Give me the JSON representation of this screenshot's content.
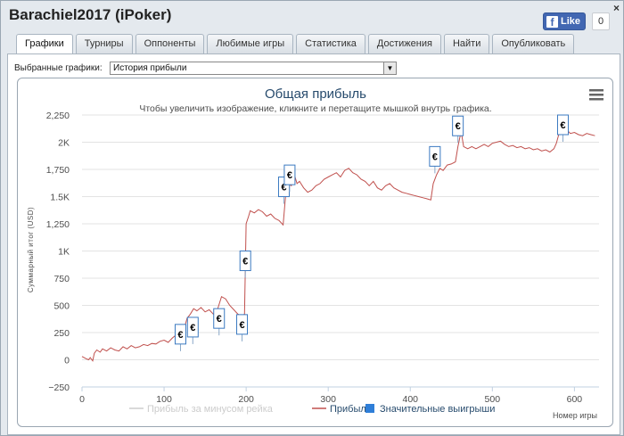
{
  "window": {
    "title": "Barachiel2017 (iPoker)",
    "close_glyph": "×"
  },
  "facebook": {
    "like_label": "Like",
    "count": "0",
    "icon": "facebook-icon"
  },
  "tabs": [
    {
      "label": "Графики",
      "active": true
    },
    {
      "label": "Турниры"
    },
    {
      "label": "Оппоненты"
    },
    {
      "label": "Любимые игры"
    },
    {
      "label": "Статистика"
    },
    {
      "label": "Достижения"
    },
    {
      "label": "Найти"
    },
    {
      "label": "Опубликовать"
    }
  ],
  "graph_select": {
    "label": "Выбранные графики:",
    "value": "История прибыли"
  },
  "chart_menu_icon": "hamburger-menu-icon",
  "chart_data": {
    "type": "line",
    "title": "Общая прибыль",
    "subtitle": "Чтобы увеличить изображение, кликните и перетащите мышкой внутрь графика.",
    "ylabel": "Суммарный итог (USD)",
    "xlabel": "Номер игры",
    "ylim": [
      -250,
      2250
    ],
    "xlim": [
      0,
      630
    ],
    "yticks": [
      {
        "v": -250,
        "label": "−250"
      },
      {
        "v": 0,
        "label": "0"
      },
      {
        "v": 250,
        "label": "250"
      },
      {
        "v": 500,
        "label": "500"
      },
      {
        "v": 750,
        "label": "750"
      },
      {
        "v": 1000,
        "label": "1K"
      },
      {
        "v": 1250,
        "label": "1,250"
      },
      {
        "v": 1500,
        "label": "1.5K"
      },
      {
        "v": 1750,
        "label": "1,750"
      },
      {
        "v": 2000,
        "label": "2K"
      },
      {
        "v": 2250,
        "label": "2,250"
      }
    ],
    "xticks": [
      0,
      100,
      200,
      300,
      400,
      500,
      600
    ],
    "legend": [
      {
        "name": "Прибыль за минусом рейка",
        "color": "#cccccc",
        "inactive": true
      },
      {
        "name": "Прибыль",
        "color": "#c0504d"
      },
      {
        "name": "Значительные выигрыши",
        "color": "#2f7ed8",
        "marker": "square"
      }
    ],
    "series": [
      {
        "name": "Прибыль",
        "color": "#c0504d",
        "points": [
          [
            0,
            30
          ],
          [
            5,
            10
          ],
          [
            8,
            0
          ],
          [
            10,
            20
          ],
          [
            13,
            -10
          ],
          [
            15,
            60
          ],
          [
            18,
            90
          ],
          [
            22,
            70
          ],
          [
            25,
            100
          ],
          [
            30,
            80
          ],
          [
            35,
            110
          ],
          [
            40,
            90
          ],
          [
            45,
            80
          ],
          [
            50,
            120
          ],
          [
            55,
            100
          ],
          [
            60,
            130
          ],
          [
            65,
            110
          ],
          [
            70,
            120
          ],
          [
            75,
            140
          ],
          [
            80,
            130
          ],
          [
            85,
            150
          ],
          [
            90,
            145
          ],
          [
            95,
            170
          ],
          [
            100,
            180
          ],
          [
            105,
            160
          ],
          [
            110,
            200
          ],
          [
            115,
            230
          ],
          [
            118,
            250
          ],
          [
            122,
            260
          ],
          [
            125,
            300
          ],
          [
            128,
            380
          ],
          [
            132,
            420
          ],
          [
            136,
            470
          ],
          [
            140,
            450
          ],
          [
            145,
            480
          ],
          [
            150,
            440
          ],
          [
            155,
            460
          ],
          [
            160,
            420
          ],
          [
            165,
            460
          ],
          [
            170,
            580
          ],
          [
            175,
            560
          ],
          [
            180,
            500
          ],
          [
            185,
            460
          ],
          [
            190,
            420
          ],
          [
            195,
            400
          ],
          [
            198,
            420
          ],
          [
            200,
            1250
          ],
          [
            203,
            1320
          ],
          [
            205,
            1370
          ],
          [
            210,
            1350
          ],
          [
            215,
            1380
          ],
          [
            220,
            1360
          ],
          [
            225,
            1320
          ],
          [
            230,
            1340
          ],
          [
            235,
            1300
          ],
          [
            240,
            1280
          ],
          [
            245,
            1240
          ],
          [
            248,
            1500
          ],
          [
            252,
            1620
          ],
          [
            255,
            1600
          ],
          [
            258,
            1720
          ],
          [
            262,
            1620
          ],
          [
            265,
            1640
          ],
          [
            270,
            1580
          ],
          [
            275,
            1540
          ],
          [
            280,
            1560
          ],
          [
            285,
            1600
          ],
          [
            290,
            1620
          ],
          [
            295,
            1660
          ],
          [
            300,
            1680
          ],
          [
            305,
            1700
          ],
          [
            310,
            1720
          ],
          [
            315,
            1680
          ],
          [
            320,
            1740
          ],
          [
            325,
            1760
          ],
          [
            330,
            1720
          ],
          [
            335,
            1700
          ],
          [
            340,
            1660
          ],
          [
            345,
            1640
          ],
          [
            350,
            1600
          ],
          [
            355,
            1640
          ],
          [
            360,
            1580
          ],
          [
            365,
            1560
          ],
          [
            370,
            1600
          ],
          [
            375,
            1620
          ],
          [
            380,
            1580
          ],
          [
            385,
            1560
          ],
          [
            390,
            1540
          ],
          [
            395,
            1530
          ],
          [
            400,
            1520
          ],
          [
            405,
            1510
          ],
          [
            410,
            1500
          ],
          [
            415,
            1490
          ],
          [
            420,
            1480
          ],
          [
            425,
            1470
          ],
          [
            428,
            1620
          ],
          [
            432,
            1700
          ],
          [
            436,
            1760
          ],
          [
            440,
            1740
          ],
          [
            445,
            1790
          ],
          [
            450,
            1800
          ],
          [
            455,
            1820
          ],
          [
            458,
            1960
          ],
          [
            462,
            2100
          ],
          [
            465,
            1960
          ],
          [
            470,
            1940
          ],
          [
            475,
            1960
          ],
          [
            480,
            1940
          ],
          [
            485,
            1960
          ],
          [
            490,
            1980
          ],
          [
            495,
            1960
          ],
          [
            500,
            1990
          ],
          [
            505,
            2000
          ],
          [
            510,
            2010
          ],
          [
            515,
            1980
          ],
          [
            520,
            1960
          ],
          [
            525,
            1970
          ],
          [
            530,
            1950
          ],
          [
            535,
            1960
          ],
          [
            540,
            1940
          ],
          [
            545,
            1950
          ],
          [
            550,
            1930
          ],
          [
            555,
            1940
          ],
          [
            560,
            1920
          ],
          [
            565,
            1930
          ],
          [
            570,
            1910
          ],
          [
            575,
            1940
          ],
          [
            578,
            1990
          ],
          [
            582,
            2100
          ],
          [
            586,
            2170
          ],
          [
            590,
            2120
          ],
          [
            595,
            2080
          ],
          [
            600,
            2090
          ],
          [
            605,
            2070
          ],
          [
            610,
            2060
          ],
          [
            615,
            2080
          ],
          [
            620,
            2070
          ],
          [
            625,
            2060
          ]
        ]
      }
    ],
    "markers": {
      "name": "Значительные выигрыши",
      "glyph": "€",
      "points": [
        [
          122,
          1
        ],
        [
          136,
          1
        ],
        [
          168,
          1
        ],
        [
          196,
          1
        ],
        [
          200,
          1
        ],
        [
          248,
          1
        ],
        [
          252,
          1
        ],
        [
          432,
          1
        ],
        [
          458,
          1
        ],
        [
          586,
          1
        ]
      ],
      "tops": [
        {
          "x": 120,
          "y": 325
        },
        {
          "x": 135,
          "y": 390
        },
        {
          "x": 167,
          "y": 470
        },
        {
          "x": 195,
          "y": 415
        },
        {
          "x": 199,
          "y": 1000
        },
        {
          "x": 246,
          "y": 1680
        },
        {
          "x": 253,
          "y": 1790
        },
        {
          "x": 430,
          "y": 1960
        },
        {
          "x": 458,
          "y": 2240
        },
        {
          "x": 586,
          "y": 2250
        }
      ]
    }
  }
}
